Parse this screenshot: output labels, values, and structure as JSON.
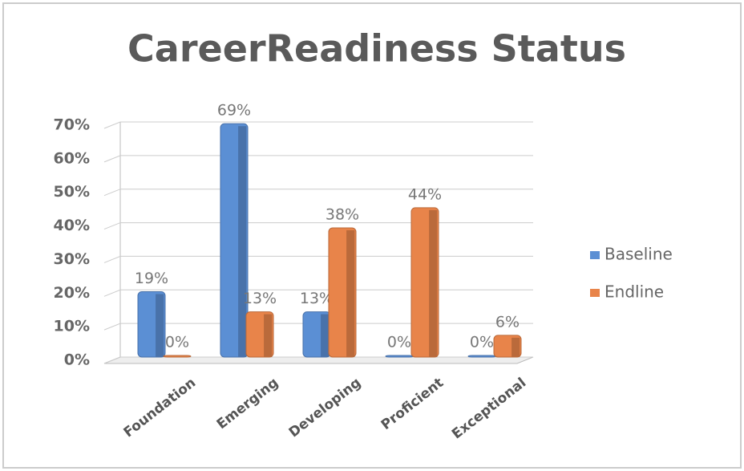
{
  "chart_data": {
    "type": "bar",
    "title": "CareerReadiness Status",
    "categories": [
      "Foundation",
      "Emerging",
      "Developing",
      "Proficient",
      "Exceptional"
    ],
    "series": [
      {
        "name": "Baseline",
        "color": "#5b8fd4",
        "values": [
          19,
          69,
          13,
          0,
          0
        ],
        "value_labels": [
          "19%",
          "69%",
          "13%",
          "0%",
          "0%"
        ]
      },
      {
        "name": "Endline",
        "color": "#e8844a",
        "values": [
          0,
          13,
          38,
          44,
          6
        ],
        "value_labels": [
          "0%",
          "13%",
          "38%",
          "44%",
          "6%"
        ]
      }
    ],
    "ylim": [
      0,
      70
    ],
    "yticks": [
      {
        "value": 0,
        "label": "0%"
      },
      {
        "value": 10,
        "label": "10%"
      },
      {
        "value": 20,
        "label": "20%"
      },
      {
        "value": 30,
        "label": "30%"
      },
      {
        "value": 40,
        "label": "40%"
      },
      {
        "value": 50,
        "label": "50%"
      },
      {
        "value": 60,
        "label": "60%"
      },
      {
        "value": 70,
        "label": "70%"
      }
    ],
    "grid": true,
    "legend": "right"
  }
}
